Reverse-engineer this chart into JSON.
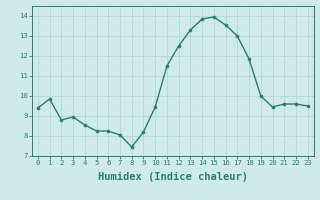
{
  "x": [
    0,
    1,
    2,
    3,
    4,
    5,
    6,
    7,
    8,
    9,
    10,
    11,
    12,
    13,
    14,
    15,
    16,
    17,
    18,
    19,
    20,
    21,
    22,
    23
  ],
  "y": [
    9.4,
    9.85,
    8.8,
    8.95,
    8.55,
    8.25,
    8.25,
    8.05,
    7.45,
    8.2,
    9.45,
    11.5,
    12.5,
    13.3,
    13.85,
    13.95,
    13.55,
    13.0,
    11.85,
    10.0,
    9.45,
    9.6,
    9.6,
    9.5
  ],
  "line_color": "#2d7d6e",
  "marker_color": "#2d7d6e",
  "bg_color": "#ceeaea",
  "grid_color": "#b2d8d8",
  "xlabel": "Humidex (Indice chaleur)",
  "xlim": [
    -0.5,
    23.5
  ],
  "ylim": [
    7,
    14.5
  ],
  "yticks": [
    7,
    8,
    9,
    10,
    11,
    12,
    13,
    14
  ],
  "xticks": [
    0,
    1,
    2,
    3,
    4,
    5,
    6,
    7,
    8,
    9,
    10,
    11,
    12,
    13,
    14,
    15,
    16,
    17,
    18,
    19,
    20,
    21,
    22,
    23
  ],
  "tick_fontsize": 5.2,
  "xlabel_fontsize": 7.5,
  "marker_size": 2.2,
  "line_width": 1.0
}
